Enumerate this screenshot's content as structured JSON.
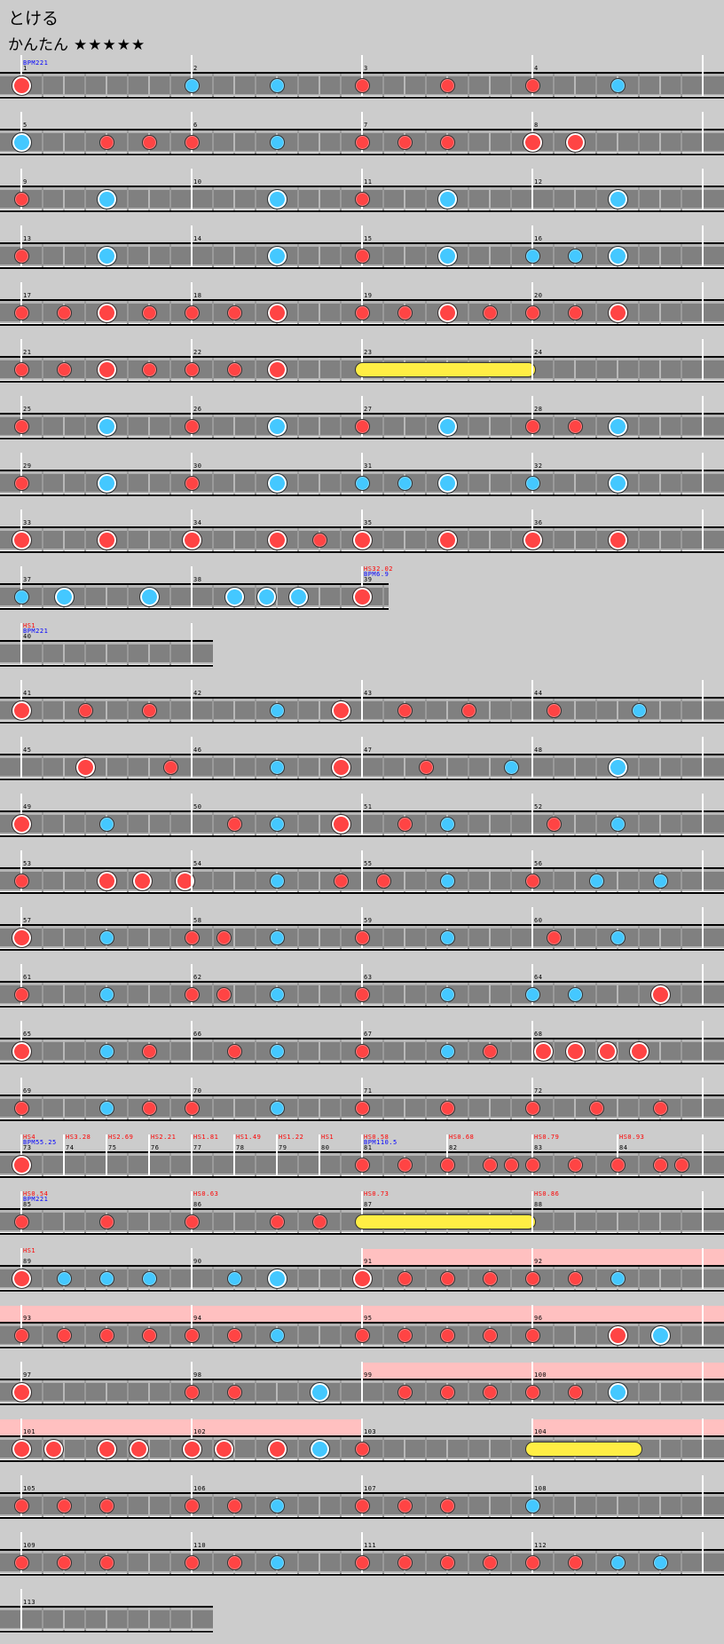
{
  "song_title": "とける",
  "difficulty": "かんたん",
  "stars": "★★★★★",
  "star_level": 5,
  "colors": {
    "don": "#ff4444",
    "ka": "#44c8ff",
    "roll": "#ffee44",
    "gogo": "#ffc0c0",
    "hs": "#ff0000",
    "bpm": "#0000ff"
  },
  "note_legend": {
    "d": "don",
    "D": "big don",
    "k": "ka",
    "K": "big ka",
    "R": "drumroll"
  },
  "rows": [
    {
      "measures": [
        {
          "n": "1",
          "notes": "D0",
          "bpm": "BPM221"
        },
        {
          "n": "2",
          "notes": "k0 k4"
        },
        {
          "n": "3",
          "notes": "d0 d4"
        },
        {
          "n": "4",
          "notes": "d0 k4"
        }
      ]
    },
    {
      "measures": [
        {
          "n": "5",
          "notes": "K0 d4 d6"
        },
        {
          "n": "6",
          "notes": "d0 k4"
        },
        {
          "n": "7",
          "notes": "d0 d2 d4"
        },
        {
          "n": "8",
          "notes": "D0 D2"
        }
      ]
    },
    {
      "measures": [
        {
          "n": "9",
          "notes": "d0 K4"
        },
        {
          "n": "10",
          "notes": "K4"
        },
        {
          "n": "11",
          "notes": "d0 K4"
        },
        {
          "n": "12",
          "notes": "K4"
        }
      ]
    },
    {
      "measures": [
        {
          "n": "13",
          "notes": "d0 K4"
        },
        {
          "n": "14",
          "notes": "K4"
        },
        {
          "n": "15",
          "notes": "d0 K4"
        },
        {
          "n": "16",
          "notes": "k0 k2 K4"
        }
      ]
    },
    {
      "measures": [
        {
          "n": "17",
          "notes": "d0 d2 D4 d6"
        },
        {
          "n": "18",
          "notes": "d0 d2 D4"
        },
        {
          "n": "19",
          "notes": "d0 d2 D4 d6"
        },
        {
          "n": "20",
          "notes": "d0 d2 D4"
        }
      ]
    },
    {
      "measures": [
        {
          "n": "21",
          "notes": "d0 d2 D4 d6"
        },
        {
          "n": "22",
          "notes": "d0 d2 D4"
        },
        {
          "n": "23",
          "notes": "R0-8"
        },
        {
          "n": "24",
          "notes": ""
        }
      ]
    },
    {
      "measures": [
        {
          "n": "25",
          "notes": "d0 K4"
        },
        {
          "n": "26",
          "notes": "d0 K4"
        },
        {
          "n": "27",
          "notes": "d0 K4"
        },
        {
          "n": "28",
          "notes": "d0 d2 K4"
        }
      ]
    },
    {
      "measures": [
        {
          "n": "29",
          "notes": "d0 K4"
        },
        {
          "n": "30",
          "notes": "d0 K4"
        },
        {
          "n": "31",
          "notes": "k0 k2 K4"
        },
        {
          "n": "32",
          "notes": "k0 K4"
        }
      ]
    },
    {
      "measures": [
        {
          "n": "33",
          "notes": "D0 D4"
        },
        {
          "n": "34",
          "notes": "D0 D4 d6"
        },
        {
          "n": "35",
          "notes": "D0 D4"
        },
        {
          "n": "36",
          "notes": "D0 D4"
        }
      ]
    },
    {
      "measures": [
        {
          "n": "37",
          "notes": "k0 K2 K6"
        },
        {
          "n": "38",
          "notes": "K2 K3.5 K5"
        },
        {
          "n": "39",
          "len": 1.25,
          "notes": "D0",
          "hs": "HS32.02",
          "bpm": "BPM6.9"
        }
      ]
    },
    {
      "measures": [
        {
          "n": "40",
          "notes": "",
          "hs": "HS1",
          "bpm": "BPM221"
        },
        {
          "n": "",
          "len": 1,
          "notes": ""
        }
      ]
    },
    {
      "measures": [
        {
          "n": "41",
          "notes": "D0 d3 d6"
        },
        {
          "n": "42",
          "notes": "k4 D7"
        },
        {
          "n": "43",
          "notes": "d2 d5"
        },
        {
          "n": "44",
          "notes": "d1 k5"
        }
      ]
    },
    {
      "measures": [
        {
          "n": "45",
          "notes": "D3 d7"
        },
        {
          "n": "46",
          "notes": "k4 D7"
        },
        {
          "n": "47",
          "notes": "d3 k7"
        },
        {
          "n": "48",
          "notes": "K4"
        }
      ]
    },
    {
      "measures": [
        {
          "n": "49",
          "notes": "D0 k4"
        },
        {
          "n": "50",
          "notes": "d2 k4 D7"
        },
        {
          "n": "51",
          "notes": "d2 k4"
        },
        {
          "n": "52",
          "notes": "d1 k4"
        }
      ]
    },
    {
      "measures": [
        {
          "n": "53",
          "notes": "d0 D4 D5.67 D7.67"
        },
        {
          "n": "54",
          "notes": "k4 d7"
        },
        {
          "n": "55",
          "notes": "d1 k4"
        },
        {
          "n": "56",
          "notes": "d0 k3 k6"
        }
      ]
    },
    {
      "measures": [
        {
          "n": "57",
          "notes": "D0 k4"
        },
        {
          "n": "58",
          "notes": "d0 d1.5 k4"
        },
        {
          "n": "59",
          "notes": "d0 k4"
        },
        {
          "n": "60",
          "notes": "d1 k4"
        }
      ]
    },
    {
      "measures": [
        {
          "n": "61",
          "notes": "d0 k4"
        },
        {
          "n": "62",
          "notes": "d0 d1.5 k4"
        },
        {
          "n": "63",
          "notes": "d0 k4"
        },
        {
          "n": "64",
          "notes": "k0 k2 D6"
        }
      ]
    },
    {
      "measures": [
        {
          "n": "65",
          "notes": "D0 k4 d6"
        },
        {
          "n": "66",
          "notes": "d2 k4"
        },
        {
          "n": "67",
          "notes": "d0 k4 d6"
        },
        {
          "n": "68",
          "notes": "D0.5 D2 D3.5 D5"
        }
      ]
    },
    {
      "measures": [
        {
          "n": "69",
          "notes": "d0 k4 d6"
        },
        {
          "n": "70",
          "notes": "d0 k4"
        },
        {
          "n": "71",
          "notes": "d0 d4"
        },
        {
          "n": "72",
          "notes": "d0 d3 d6"
        }
      ]
    },
    {
      "measures": [
        {
          "n": "73",
          "len": 2,
          "notes": "D0",
          "hs": "HS4",
          "bpm": "BPM55.25"
        },
        {
          "n": "74",
          "len": 2,
          "notes": "",
          "hs": "HS3.28"
        },
        {
          "n": "75",
          "len": 2,
          "notes": "",
          "hs": "HS2.69"
        },
        {
          "n": "76",
          "len": 2,
          "notes": "",
          "hs": "HS2.21"
        },
        {
          "n": "77",
          "len": 2,
          "notes": "",
          "hs": "HS1.81"
        },
        {
          "n": "78",
          "len": 2,
          "notes": "",
          "hs": "HS1.49"
        },
        {
          "n": "79",
          "len": 2,
          "notes": "",
          "hs": "HS1.22"
        },
        {
          "n": "80",
          "len": 2,
          "notes": "",
          "hs": "HS1"
        },
        {
          "n": "81",
          "len": 4,
          "notes": "d0 d2",
          "hs": "HS0.58",
          "bpm": "BPM110.5"
        },
        {
          "n": "82",
          "len": 4,
          "notes": "d0 d2 d3",
          "hs": "HS0.68"
        },
        {
          "n": "83",
          "len": 4,
          "notes": "d0 d2",
          "hs": "HS0.79"
        },
        {
          "n": "84",
          "len": 4,
          "notes": "d0 d2 d3",
          "hs": "HS0.93"
        }
      ]
    },
    {
      "measures": [
        {
          "n": "85",
          "notes": "d0 d4",
          "hs": "HS0.54",
          "bpm": "BPM221"
        },
        {
          "n": "86",
          "notes": "d0 d4 d6",
          "hs": "HS0.63"
        },
        {
          "n": "87",
          "notes": "R0-8",
          "hs": "HS0.73"
        },
        {
          "n": "88",
          "notes": "",
          "hs": "HS0.86"
        }
      ]
    },
    {
      "measures": [
        {
          "n": "89",
          "notes": "D0 k2 k4 k6",
          "hs": "HS1"
        },
        {
          "n": "90",
          "notes": "k2 K4"
        },
        {
          "n": "91",
          "notes": "D0 d2 d4 d6",
          "gogo": true
        },
        {
          "n": "92",
          "notes": "d0 d2 k4",
          "gogo": true
        }
      ]
    },
    {
      "measures": [
        {
          "n": "93",
          "notes": "d0 d2 d4 d6",
          "gogo": true
        },
        {
          "n": "94",
          "notes": "d0 d2 k4",
          "gogo": true
        },
        {
          "n": "95",
          "notes": "d0 d2 d4 d6",
          "gogo": true
        },
        {
          "n": "96",
          "notes": "d0 D4 K6",
          "gogo": true
        }
      ]
    },
    {
      "measures": [
        {
          "n": "97",
          "notes": "D0"
        },
        {
          "n": "98",
          "notes": "d0 d2 K6"
        },
        {
          "n": "99",
          "notes": "d2 d4 d6",
          "gogo": true
        },
        {
          "n": "100",
          "notes": "d0 d2 K4",
          "gogo": true
        }
      ]
    },
    {
      "measures": [
        {
          "n": "101",
          "notes": "D0 D1.5 D4 D5.5",
          "gogo": true
        },
        {
          "n": "102",
          "notes": "D0 D1.5 D4 K6",
          "gogo": true
        },
        {
          "n": "103",
          "notes": "d0"
        },
        {
          "n": "104",
          "notes": "R0-5",
          "gogo": true
        }
      ]
    },
    {
      "measures": [
        {
          "n": "105",
          "notes": "d0 d2 d4"
        },
        {
          "n": "106",
          "notes": "d0 d2 k4"
        },
        {
          "n": "107",
          "notes": "d0 d2 d4"
        },
        {
          "n": "108",
          "notes": "k0"
        }
      ]
    },
    {
      "measures": [
        {
          "n": "109",
          "notes": "d0 d2 d4"
        },
        {
          "n": "110",
          "notes": "d0 d2 k4"
        },
        {
          "n": "111",
          "notes": "d0 d2 d4 d6"
        },
        {
          "n": "112",
          "notes": "d0 d2 k4 k6"
        }
      ]
    },
    {
      "measures": [
        {
          "n": "113",
          "len": 9,
          "notes": ""
        }
      ]
    }
  ]
}
